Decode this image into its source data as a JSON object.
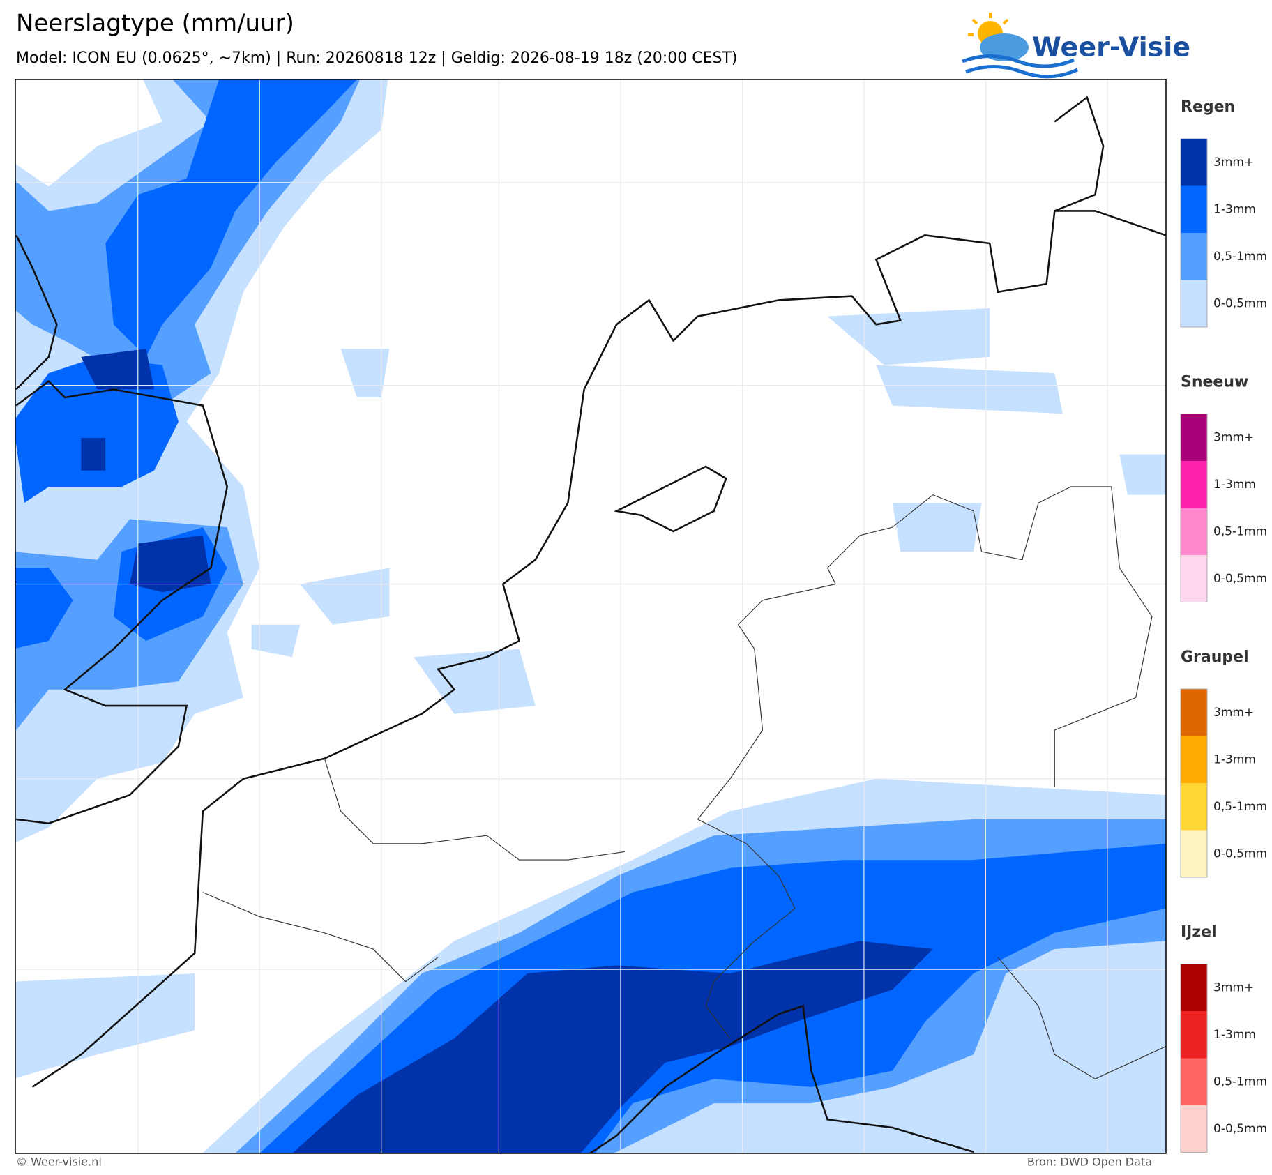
{
  "header": {
    "title": "Neerslagtype (mm/uur)",
    "subtitle": "Model: ICON EU (0.0625°, ~7km)  |  Run: 20260818 12z  |  Geldig: 2026-08-19 18z (20:00 CEST)",
    "logo": "Weer-Visie"
  },
  "legend": [
    {
      "name": "Regen",
      "items": [
        {
          "label": "3mm+",
          "color": "#0033aa"
        },
        {
          "label": "1-3mm",
          "color": "#0066ff"
        },
        {
          "label": "0,5-1mm",
          "color": "#55a0ff"
        },
        {
          "label": "0-0,5mm",
          "color": "#c6e0ff"
        }
      ]
    },
    {
      "name": "Sneeuw",
      "items": [
        {
          "label": "3mm+",
          "color": "#aa0077"
        },
        {
          "label": "1-3mm",
          "color": "#ff22aa"
        },
        {
          "label": "0,5-1mm",
          "color": "#ff88cc"
        },
        {
          "label": "0-0,5mm",
          "color": "#ffd6ee"
        }
      ]
    },
    {
      "name": "Graupel",
      "items": [
        {
          "label": "3mm+",
          "color": "#dd6600"
        },
        {
          "label": "1-3mm",
          "color": "#ffaa00"
        },
        {
          "label": "0,5-1mm",
          "color": "#ffd633"
        },
        {
          "label": "0-0,5mm",
          "color": "#fff3c4"
        }
      ]
    },
    {
      "name": "IJzel",
      "items": [
        {
          "label": "3mm+",
          "color": "#aa0000"
        },
        {
          "label": "1-3mm",
          "color": "#ee2222"
        },
        {
          "label": "0,5-1mm",
          "color": "#ff6666"
        },
        {
          "label": "0-0,5mm",
          "color": "#ffd0d0"
        }
      ]
    }
  ],
  "footer": {
    "left": "© Weer-visie.nl",
    "right": "Bron: DWD Open Data"
  }
}
